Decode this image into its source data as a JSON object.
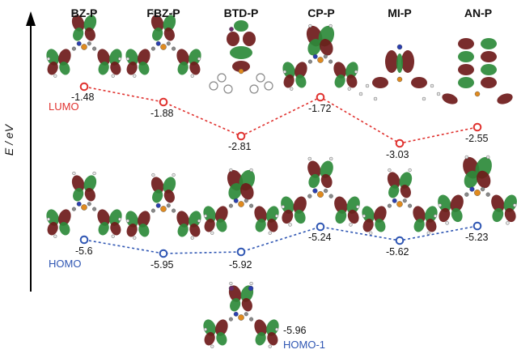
{
  "axis": {
    "label": "E / eV"
  },
  "molecules": [
    "BZ-P",
    "FBZ-P",
    "BTD-P",
    "CP-P",
    "MI-P",
    "AN-P"
  ],
  "lumo": {
    "name": "LUMO",
    "color": "#e0322f",
    "values": [
      -1.48,
      -1.88,
      -2.81,
      -1.72,
      -3.03,
      -2.55
    ]
  },
  "homo": {
    "name": "HOMO",
    "color": "#2f56b3",
    "values": [
      -5.6,
      -5.95,
      -5.92,
      -5.24,
      -5.62,
      -5.23
    ]
  },
  "homo_minus_1": {
    "name": "HOMO-1",
    "molecule": "BTD-P",
    "value": -5.96
  },
  "value_labels": {
    "lumo": [
      "-1.48",
      "-1.88",
      "-2.81",
      "-1.72",
      "-3.03",
      "-2.55"
    ],
    "homo": [
      "-5.6",
      "-5.95",
      "-5.92",
      "-5.24",
      "-5.62",
      "-5.23"
    ],
    "homo_minus_1": "-5.96"
  },
  "colors": {
    "lobe_red": "#6e1a1a",
    "lobe_green": "#2d8a3a",
    "atom_c": "#8a8a8a",
    "atom_n": "#2a3fb0",
    "atom_p": "#e08a1e",
    "atom_h": "#e8e8e8"
  }
}
